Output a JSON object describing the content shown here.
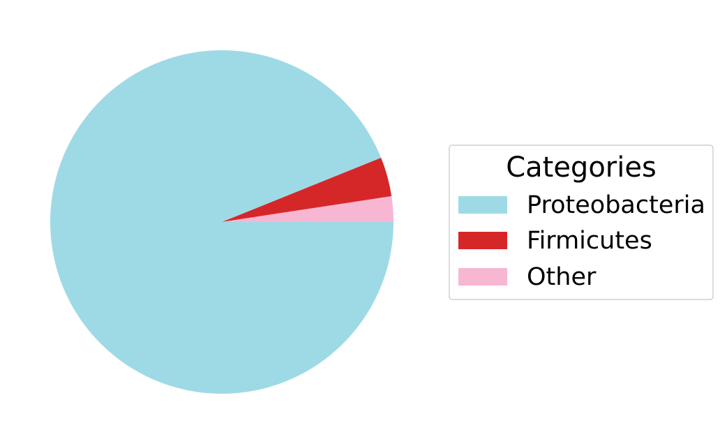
{
  "chart_data": {
    "type": "pie",
    "legend_title": "Categories",
    "legend_placement": "center-right",
    "categories": [
      "Proteobacteria",
      "Firmicutes",
      "Other"
    ],
    "values": [
      93.9,
      3.7,
      2.4
    ],
    "colors": [
      "#9edae5",
      "#d62728",
      "#f7b6d2"
    ],
    "start_angle": 0,
    "direction": "clockwise"
  }
}
